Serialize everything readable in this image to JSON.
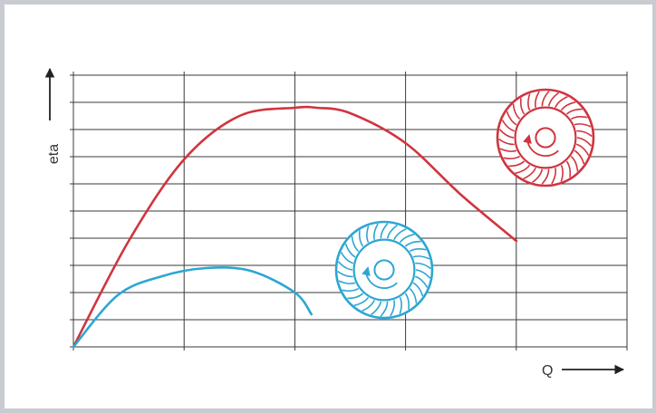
{
  "chart_data": {
    "type": "line",
    "xlabel": "Q",
    "ylabel": "eta",
    "grid": true,
    "xlim": [
      0,
      5
    ],
    "ylim": [
      0,
      10
    ],
    "x_gridlines": [
      0,
      1,
      2,
      3,
      4,
      5
    ],
    "y_gridlines": [
      0,
      1,
      2,
      3,
      4,
      5,
      6,
      7,
      8,
      9,
      10
    ],
    "series": [
      {
        "color": "#d0343f",
        "x": [
          0,
          0.5,
          1.0,
          1.5,
          2.0,
          2.2,
          2.5,
          3.0,
          3.5,
          4.0
        ],
        "y": [
          0,
          3.9,
          6.9,
          8.5,
          8.8,
          8.8,
          8.6,
          7.5,
          5.6,
          3.9
        ]
      },
      {
        "color": "#2da6d2",
        "x": [
          0,
          0.4,
          0.8,
          1.2,
          1.6,
          2.0,
          2.15
        ],
        "y": [
          0,
          1.9,
          2.6,
          2.9,
          2.8,
          2.0,
          1.2
        ]
      }
    ],
    "annotations": [
      {
        "type": "impeller-icon",
        "color": "#d0343f",
        "rotation": "counterclockwise",
        "near_series": 0
      },
      {
        "type": "impeller-icon",
        "color": "#2da6d2",
        "rotation": "counterclockwise",
        "near_series": 1
      }
    ]
  }
}
